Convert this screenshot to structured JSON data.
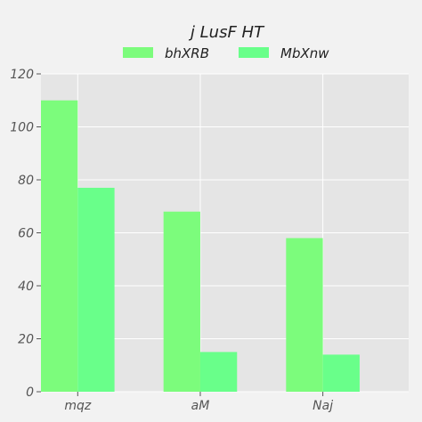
{
  "chart_data": {
    "type": "bar",
    "title": "j LusF HT",
    "xlabel": "",
    "ylabel": "",
    "categories": [
      "mqz",
      "aM",
      "Naj"
    ],
    "series": [
      {
        "name": "bhXRB",
        "values": [
          110,
          68,
          58
        ],
        "color": "#7cfc7c"
      },
      {
        "name": "MbXnw",
        "values": [
          77,
          15,
          14
        ],
        "color": "#69ff8a"
      }
    ],
    "ylim": [
      0,
      120
    ],
    "yticks": [
      0,
      20,
      40,
      60,
      80,
      100,
      120
    ],
    "grid": true,
    "legend_position": "top-center",
    "plot_background": "#e5e5e5",
    "page_background": "#f2f2f2"
  }
}
